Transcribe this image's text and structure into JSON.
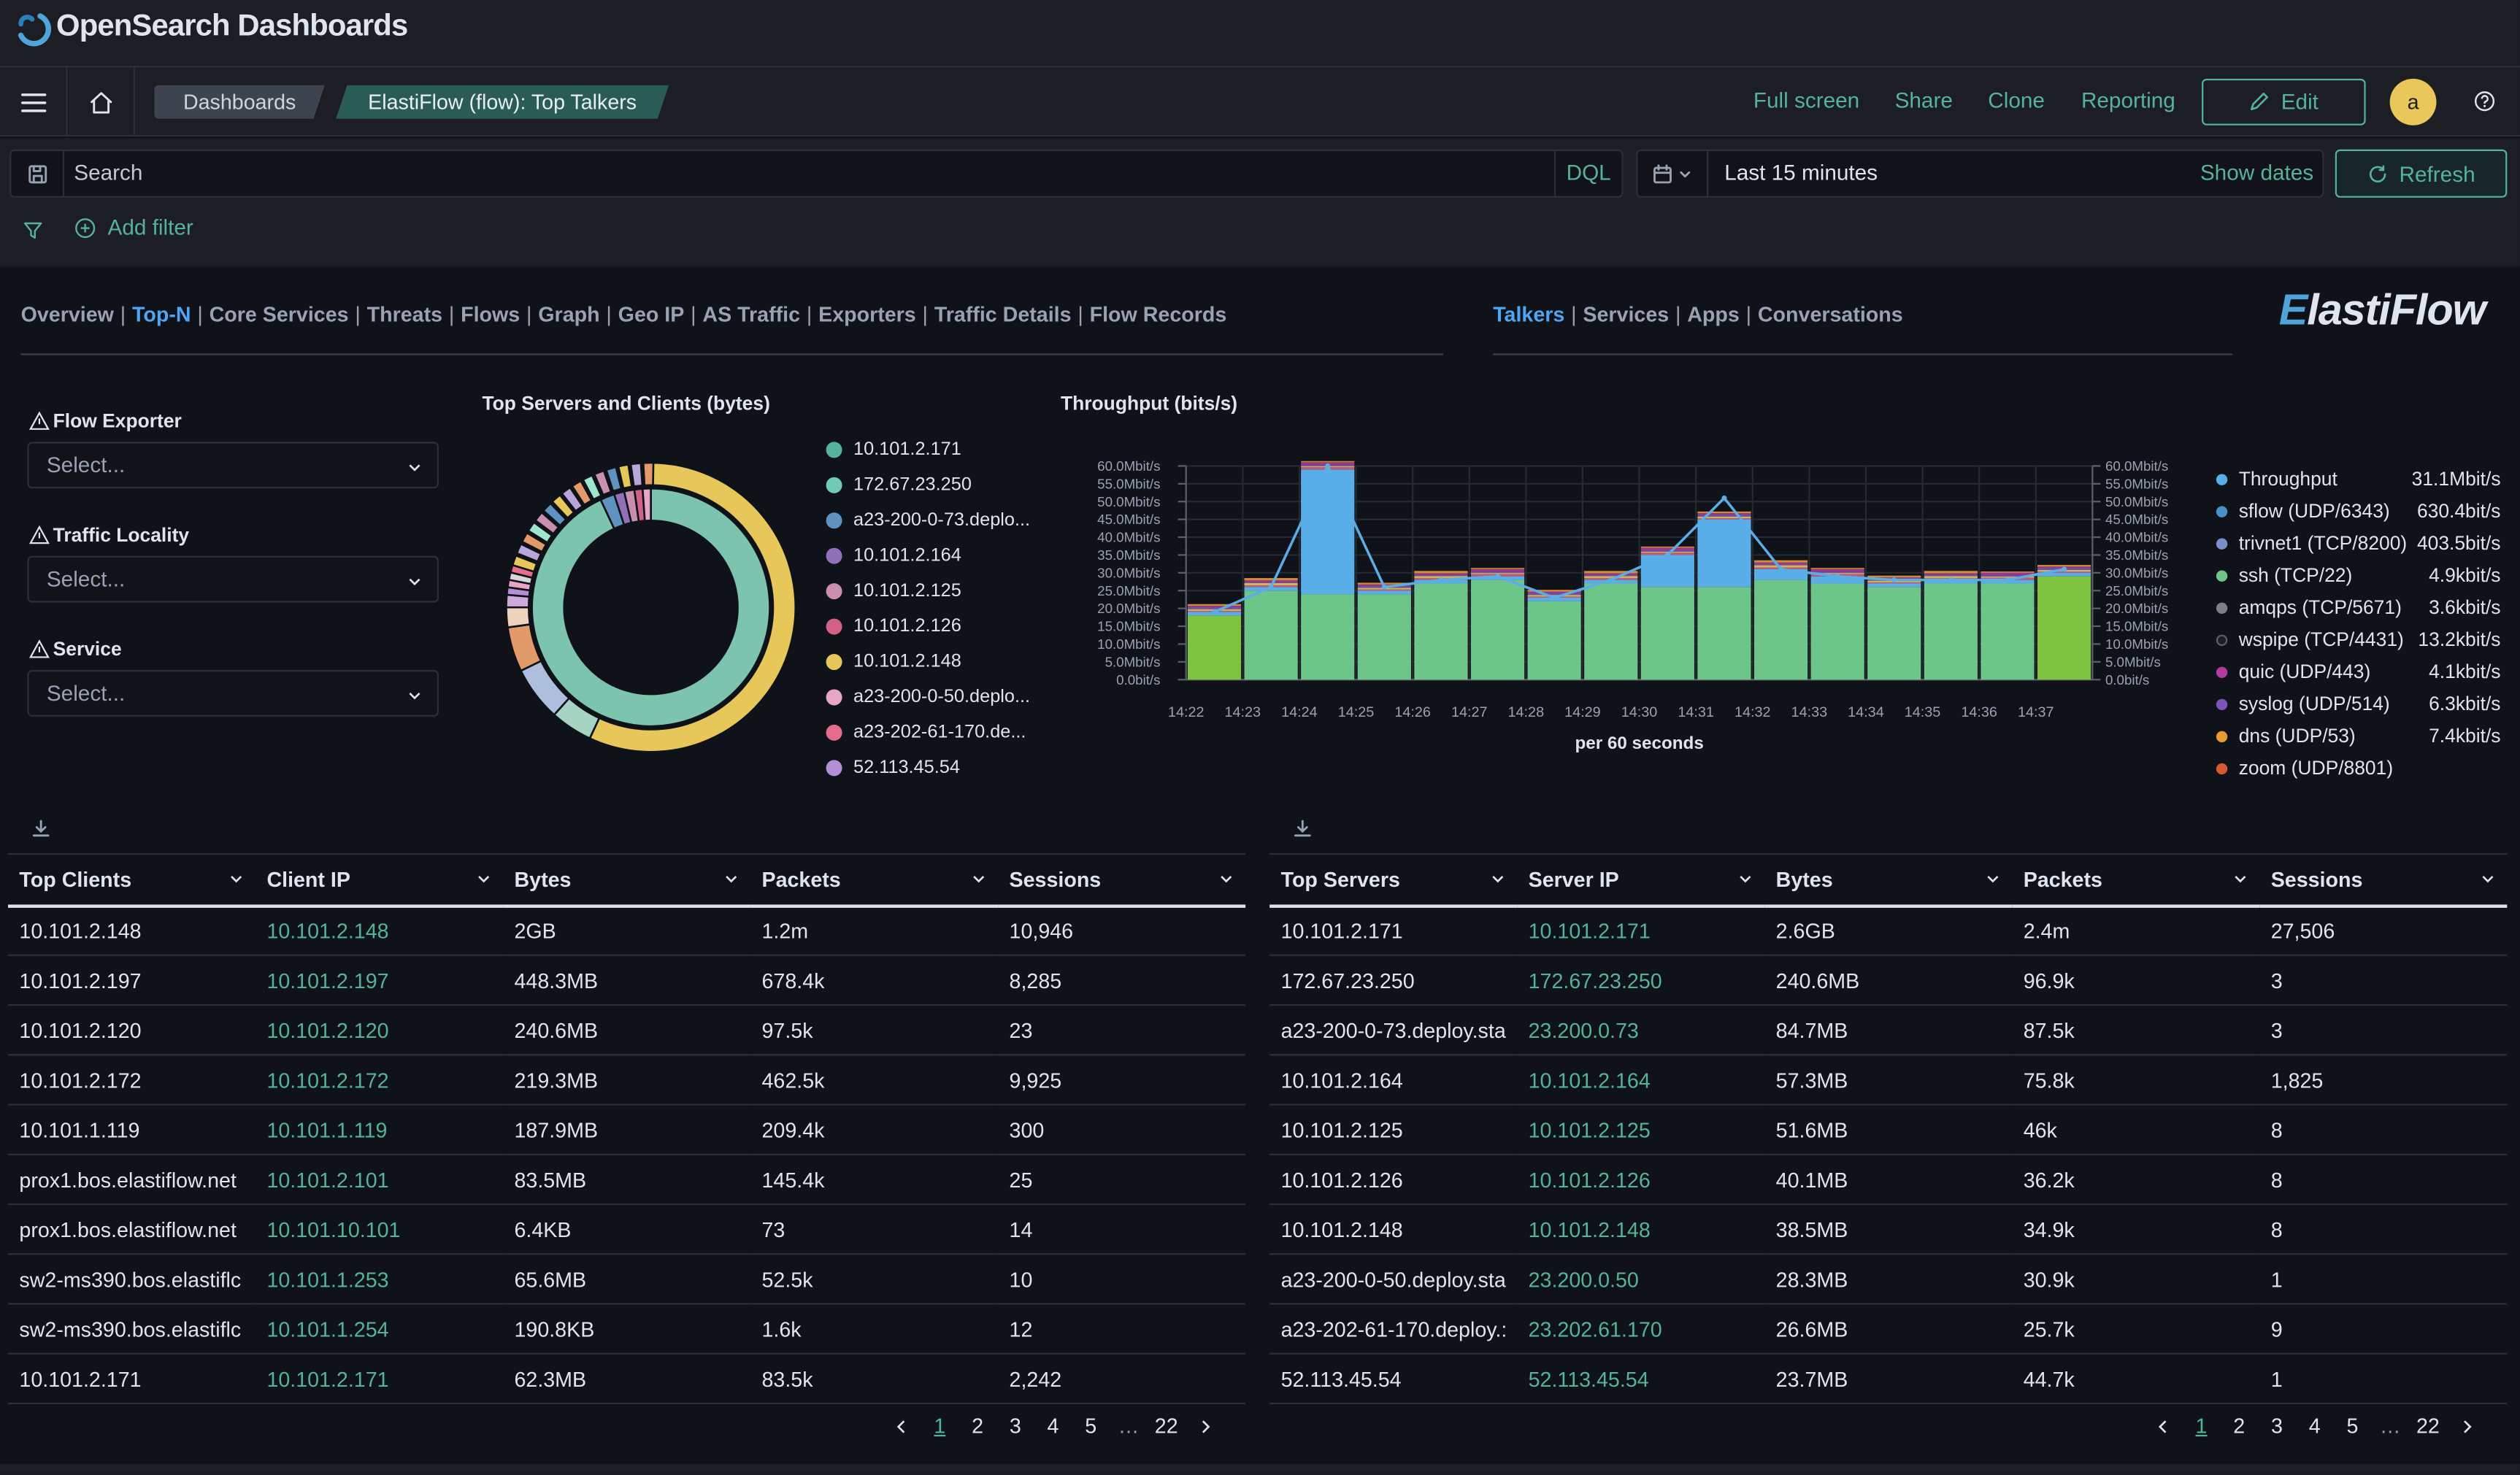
{
  "app": {
    "brand": "OpenSearch Dashboards"
  },
  "nav": {
    "breadcrumbs": [
      "Dashboards",
      "ElastiFlow (flow): Top Talkers"
    ],
    "actions": [
      "Full screen",
      "Share",
      "Clone",
      "Reporting"
    ],
    "edit_label": "Edit",
    "avatar_initial": "a"
  },
  "query": {
    "search_placeholder": "Search",
    "language": "DQL",
    "time_range": "Last 15 minutes",
    "show_dates": "Show dates",
    "refresh": "Refresh",
    "add_filter": "Add filter"
  },
  "dashboard_tabs": {
    "main": [
      "Overview",
      "Top-N",
      "Core Services",
      "Threats",
      "Flows",
      "Graph",
      "Geo IP",
      "AS Traffic",
      "Exporters",
      "Traffic Details",
      "Flow Records"
    ],
    "main_active": "Top-N",
    "sub": [
      "Talkers",
      "Services",
      "Apps",
      "Conversations"
    ],
    "sub_active": "Talkers"
  },
  "brand_logo": "ElastiFlow",
  "filters": [
    {
      "label": "Flow Exporter",
      "placeholder": "Select..."
    },
    {
      "label": "Traffic Locality",
      "placeholder": "Select..."
    },
    {
      "label": "Service",
      "placeholder": "Select..."
    }
  ],
  "donut": {
    "title": "Top Servers and Clients (bytes)",
    "legend": [
      {
        "label": "10.101.2.171",
        "color": "#54b399"
      },
      {
        "label": "172.67.23.250",
        "color": "#6dccb1"
      },
      {
        "label": "a23-200-0-73.deplo...",
        "color": "#6092c0"
      },
      {
        "label": "10.101.2.164",
        "color": "#9170b8"
      },
      {
        "label": "10.101.2.125",
        "color": "#ca8eae"
      },
      {
        "label": "10.101.2.126",
        "color": "#d36086"
      },
      {
        "label": "10.101.2.148",
        "color": "#e7c65a"
      },
      {
        "label": "a23-200-0-50.deplo...",
        "color": "#e7a6c4"
      },
      {
        "label": "a23-202-61-170.de...",
        "color": "#e56c8c"
      },
      {
        "label": "52.113.45.54",
        "color": "#b38fd8"
      }
    ]
  },
  "chart_data": {
    "type": "area",
    "title": "Throughput (bits/s)",
    "xlabel": "per 60 seconds",
    "x": [
      "14:22",
      "14:23",
      "14:24",
      "14:25",
      "14:26",
      "14:27",
      "14:28",
      "14:29",
      "14:30",
      "14:31",
      "14:32",
      "14:33",
      "14:34",
      "14:35",
      "14:36",
      "14:37"
    ],
    "ylim": [
      0,
      60
    ],
    "y_unit": "Mbit/s",
    "y_ticks": [
      "0.0bit/s",
      "5.0Mbit/s",
      "10.0Mbit/s",
      "15.0Mbit/s",
      "20.0Mbit/s",
      "25.0Mbit/s",
      "30.0Mbit/s",
      "35.0Mbit/s",
      "40.0Mbit/s",
      "45.0Mbit/s",
      "50.0Mbit/s",
      "55.0Mbit/s",
      "60.0Mbit/s"
    ],
    "series": [
      {
        "name": "ssh (TCP/22)",
        "type": "bar",
        "color": "#6dc589",
        "values": [
          18,
          25,
          24,
          24,
          27,
          28,
          22,
          27,
          26,
          26,
          28,
          27,
          26,
          27,
          27,
          29
        ]
      },
      {
        "name": "sflow (UDP/6343)",
        "type": "bar",
        "color": "#5aaee8",
        "values": [
          1,
          1,
          35,
          1,
          1,
          1,
          1,
          1,
          9,
          19,
          3,
          2,
          1,
          1,
          1,
          1
        ]
      },
      {
        "name": "Throughput",
        "type": "line",
        "color": "#5aaee8",
        "values": [
          19,
          26,
          60,
          26,
          28,
          29,
          23,
          28,
          35,
          51,
          31,
          29,
          28,
          28,
          28,
          31
        ]
      }
    ],
    "legend": [
      {
        "label": "Throughput",
        "value": "31.1Mbit/s",
        "color": "#5aaee8"
      },
      {
        "label": "sflow (UDP/6343)",
        "value": "630.4bit/s",
        "color": "#4a90c8"
      },
      {
        "label": "trivnet1 (TCP/8200)",
        "value": "403.5bit/s",
        "color": "#7b8fc9"
      },
      {
        "label": "ssh (TCP/22)",
        "value": "4.9kbit/s",
        "color": "#6dc589"
      },
      {
        "label": "amqps (TCP/5671)",
        "value": "3.6kbit/s",
        "color": "#7a7f8a"
      },
      {
        "label": "wspipe (TCP/4431)",
        "value": "13.2kbit/s",
        "color": "#1d1e24"
      },
      {
        "label": "quic (UDP/443)",
        "value": "4.1kbit/s",
        "color": "#b03aa0"
      },
      {
        "label": "syslog (UDP/514)",
        "value": "6.3kbit/s",
        "color": "#7d54b8"
      },
      {
        "label": "dns (UDP/53)",
        "value": "7.4kbit/s",
        "color": "#e79a2f"
      },
      {
        "label": "zoom (UDP/8801)",
        "value": "",
        "color": "#d35b2d"
      }
    ]
  },
  "clients_table": {
    "columns": [
      "Top Clients",
      "Client IP",
      "Bytes",
      "Packets",
      "Sessions"
    ],
    "rows": [
      [
        "10.101.2.148",
        "10.101.2.148",
        "2GB",
        "1.2m",
        "10,946"
      ],
      [
        "10.101.2.197",
        "10.101.2.197",
        "448.3MB",
        "678.4k",
        "8,285"
      ],
      [
        "10.101.2.120",
        "10.101.2.120",
        "240.6MB",
        "97.5k",
        "23"
      ],
      [
        "10.101.2.172",
        "10.101.2.172",
        "219.3MB",
        "462.5k",
        "9,925"
      ],
      [
        "10.101.1.119",
        "10.101.1.119",
        "187.9MB",
        "209.4k",
        "300"
      ],
      [
        "prox1.bos.elastiflow.net",
        "10.101.2.101",
        "83.5MB",
        "145.4k",
        "25"
      ],
      [
        "prox1.bos.elastiflow.net",
        "10.101.10.101",
        "6.4KB",
        "73",
        "14"
      ],
      [
        "sw2-ms390.bos.elastiflc",
        "10.101.1.253",
        "65.6MB",
        "52.5k",
        "10"
      ],
      [
        "sw2-ms390.bos.elastiflc",
        "10.101.1.254",
        "190.8KB",
        "1.6k",
        "12"
      ],
      [
        "10.101.2.171",
        "10.101.2.171",
        "62.3MB",
        "83.5k",
        "2,242"
      ]
    ],
    "pages": [
      "1",
      "2",
      "3",
      "4",
      "5",
      "…",
      "22"
    ]
  },
  "servers_table": {
    "columns": [
      "Top Servers",
      "Server IP",
      "Bytes",
      "Packets",
      "Sessions"
    ],
    "rows": [
      [
        "10.101.2.171",
        "10.101.2.171",
        "2.6GB",
        "2.4m",
        "27,506"
      ],
      [
        "172.67.23.250",
        "172.67.23.250",
        "240.6MB",
        "96.9k",
        "3"
      ],
      [
        "a23-200-0-73.deploy.sta",
        "23.200.0.73",
        "84.7MB",
        "87.5k",
        "3"
      ],
      [
        "10.101.2.164",
        "10.101.2.164",
        "57.3MB",
        "75.8k",
        "1,825"
      ],
      [
        "10.101.2.125",
        "10.101.2.125",
        "51.6MB",
        "46k",
        "8"
      ],
      [
        "10.101.2.126",
        "10.101.2.126",
        "40.1MB",
        "36.2k",
        "8"
      ],
      [
        "10.101.2.148",
        "10.101.2.148",
        "38.5MB",
        "34.9k",
        "8"
      ],
      [
        "a23-200-0-50.deploy.sta",
        "23.200.0.50",
        "28.3MB",
        "30.9k",
        "1"
      ],
      [
        "a23-202-61-170.deploy.:",
        "23.202.61.170",
        "26.6MB",
        "25.7k",
        "9"
      ],
      [
        "52.113.45.54",
        "52.113.45.54",
        "23.7MB",
        "44.7k",
        "1"
      ]
    ],
    "pages": [
      "1",
      "2",
      "3",
      "4",
      "5",
      "…",
      "22"
    ]
  }
}
